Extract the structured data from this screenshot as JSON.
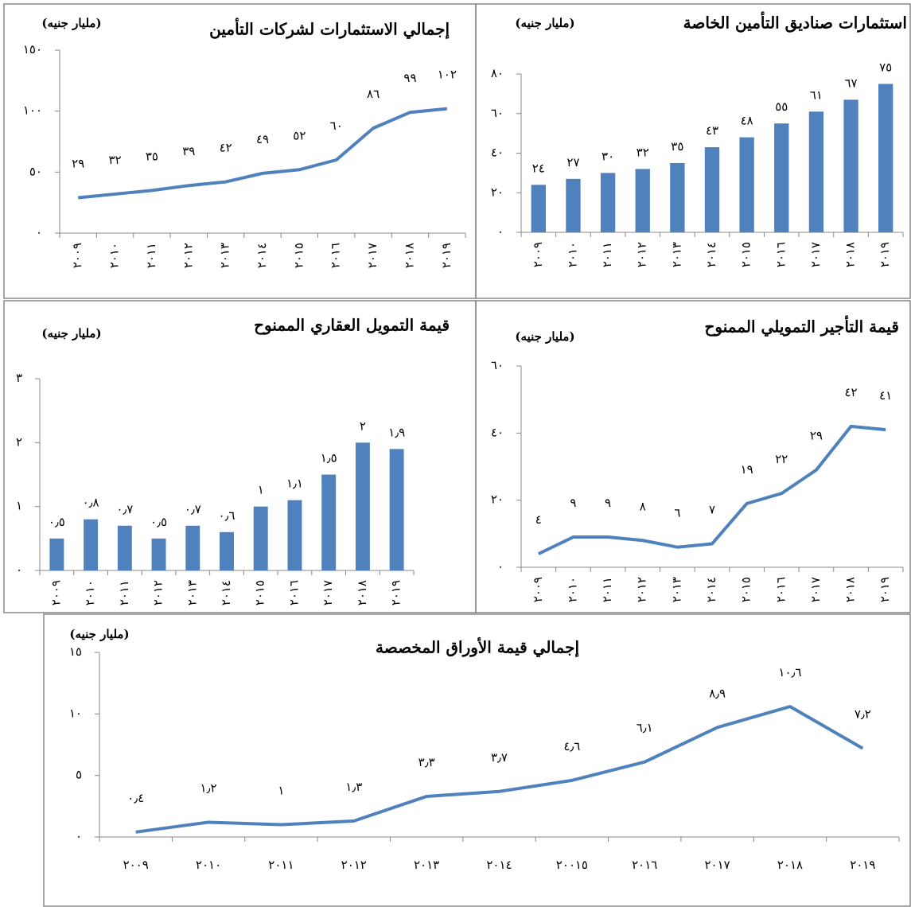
{
  "chart_data": [
    {
      "type": "line",
      "title": "إجمالي الاستثمارات لشركات التأمين",
      "subtitle": "(مليار جنيه)",
      "color": "#4f81bd",
      "categories": [
        "٢٠٠٩",
        "٢٠١٠",
        "٢٠١١",
        "٢٠١٢",
        "٢٠١٣",
        "٢٠١٤",
        "٢٠١٥",
        "٢٠١٦",
        "٢٠١٧",
        "٢٠١٨",
        "٢٠١٩"
      ],
      "values": [
        29,
        32,
        35,
        39,
        42,
        49,
        52,
        60,
        86,
        99,
        102
      ],
      "value_labels": [
        "٢٩",
        "٣٢",
        "٣٥",
        "٣٩",
        "٤٢",
        "٤٩",
        "٥٢",
        "٦٠",
        "٨٦",
        "٩٩",
        "١٠٢"
      ],
      "ylim": [
        0,
        150
      ],
      "yticks": [
        {
          "value": 0,
          "label": "٠"
        },
        {
          "value": 50,
          "label": "٥٠"
        },
        {
          "value": 100,
          "label": "١٠٠"
        },
        {
          "value": 150,
          "label": "١٥٠"
        }
      ]
    },
    {
      "type": "bar",
      "title": "استثمارات صناديق التأمين الخاصة",
      "subtitle": "(مليار جنيه)",
      "color": "#4f81bd",
      "categories": [
        "٢٠٠٩",
        "٢٠١٠",
        "٢٠١١",
        "٢٠١٢",
        "٢٠١٣",
        "٢٠١٤",
        "٢٠١٥",
        "٢٠١٦",
        "٢٠١٧",
        "٢٠١٨",
        "٢٠١٩"
      ],
      "values": [
        24,
        27,
        30,
        32,
        35,
        43,
        48,
        55,
        61,
        67,
        75
      ],
      "value_labels": [
        "٢٤",
        "٢٧",
        "٣٠",
        "٣٢",
        "٣٥",
        "٤٣",
        "٤٨",
        "٥٥",
        "٦١",
        "٦٧",
        "٧٥"
      ],
      "ylim": [
        0,
        80
      ],
      "yticks": [
        {
          "value": 0,
          "label": "٠"
        },
        {
          "value": 20,
          "label": "٢٠"
        },
        {
          "value": 40,
          "label": "٤٠"
        },
        {
          "value": 60,
          "label": "٦٠"
        },
        {
          "value": 80,
          "label": "٨٠"
        }
      ]
    },
    {
      "type": "bar",
      "title": "قيمة التمويل العقاري الممنوح",
      "subtitle": "(مليار جنيه)",
      "color": "#4f81bd",
      "categories": [
        "٢٠٠٩",
        "٢٠١٠",
        "٢٠١١",
        "٢٠١٢",
        "٢٠١٣",
        "٢٠١٤",
        "٢٠١٥",
        "٢٠١٦",
        "٢٠١٧",
        "٢٠١٨",
        "٢٠١٩"
      ],
      "values": [
        0.5,
        0.8,
        0.7,
        0.5,
        0.7,
        0.6,
        1,
        1.1,
        1.5,
        2,
        1.9
      ],
      "value_labels": [
        "٠٫٥",
        "٠٫٨",
        "٠٫٧",
        "٠٫٥",
        "٠٫٧",
        "٠٫٦",
        "١",
        "١٫١",
        "١٫٥",
        "٢",
        "١٫٩"
      ],
      "ylim": [
        0,
        3
      ],
      "yticks": [
        {
          "value": 0,
          "label": "٠"
        },
        {
          "value": 1,
          "label": "١"
        },
        {
          "value": 2,
          "label": "٢"
        },
        {
          "value": 3,
          "label": "٣"
        }
      ]
    },
    {
      "type": "line",
      "title": "قيمة التأجير التمويلي الممنوح",
      "subtitle": "(مليار جنيه)",
      "color": "#4f81bd",
      "categories": [
        "٢٠٠٩",
        "٢٠١٠",
        "٢٠١١",
        "٢٠١٢",
        "٢٠١٣",
        "٢٠١٤",
        "٢٠١٥",
        "٢٠١٦",
        "٢٠١٧",
        "٢٠١٨",
        "٢٠١٩"
      ],
      "values": [
        4,
        9,
        9,
        8,
        6,
        7,
        19,
        22,
        29,
        42,
        41
      ],
      "value_labels": [
        "٤",
        "٩",
        "٩",
        "٨",
        "٦",
        "٧",
        "١٩",
        "٢٢",
        "٢٩",
        "٤٢",
        "٤١"
      ],
      "ylim": [
        0,
        60
      ],
      "yticks": [
        {
          "value": 0,
          "label": "٠"
        },
        {
          "value": 20,
          "label": "٢٠"
        },
        {
          "value": 40,
          "label": "٤٠"
        },
        {
          "value": 60,
          "label": "٦٠"
        }
      ]
    },
    {
      "type": "line",
      "title": "إجمالي قيمة الأوراق المخصصة",
      "subtitle": "(مليار جنيه)",
      "color": "#4f81bd",
      "categories": [
        "٢٠٠٩",
        "٢٠١٠",
        "٢٠١١",
        "٢٠١٢",
        "٢٠١٣",
        "٢٠١٤",
        "٢٠٠١٥",
        "٢٠١٦",
        "٢٠١٧",
        "٢٠١٨",
        "٢٠١٩"
      ],
      "values": [
        0.4,
        1.2,
        1,
        1.3,
        3.3,
        3.7,
        4.6,
        6.1,
        8.9,
        10.6,
        7.2
      ],
      "value_labels": [
        "٠٫٤",
        "١٫٢",
        "١",
        "١٫٣",
        "٣٫٣",
        "٣٫٧",
        "٤٫٦",
        "٦٫١",
        "٨٫٩",
        "١٠٫٦",
        "٧٫٢"
      ],
      "ylim": [
        0,
        15
      ],
      "yticks": [
        {
          "value": 0,
          "label": "٠"
        },
        {
          "value": 5,
          "label": "٥"
        },
        {
          "value": 10,
          "label": "١٠"
        },
        {
          "value": 15,
          "label": "١٥"
        }
      ]
    }
  ]
}
